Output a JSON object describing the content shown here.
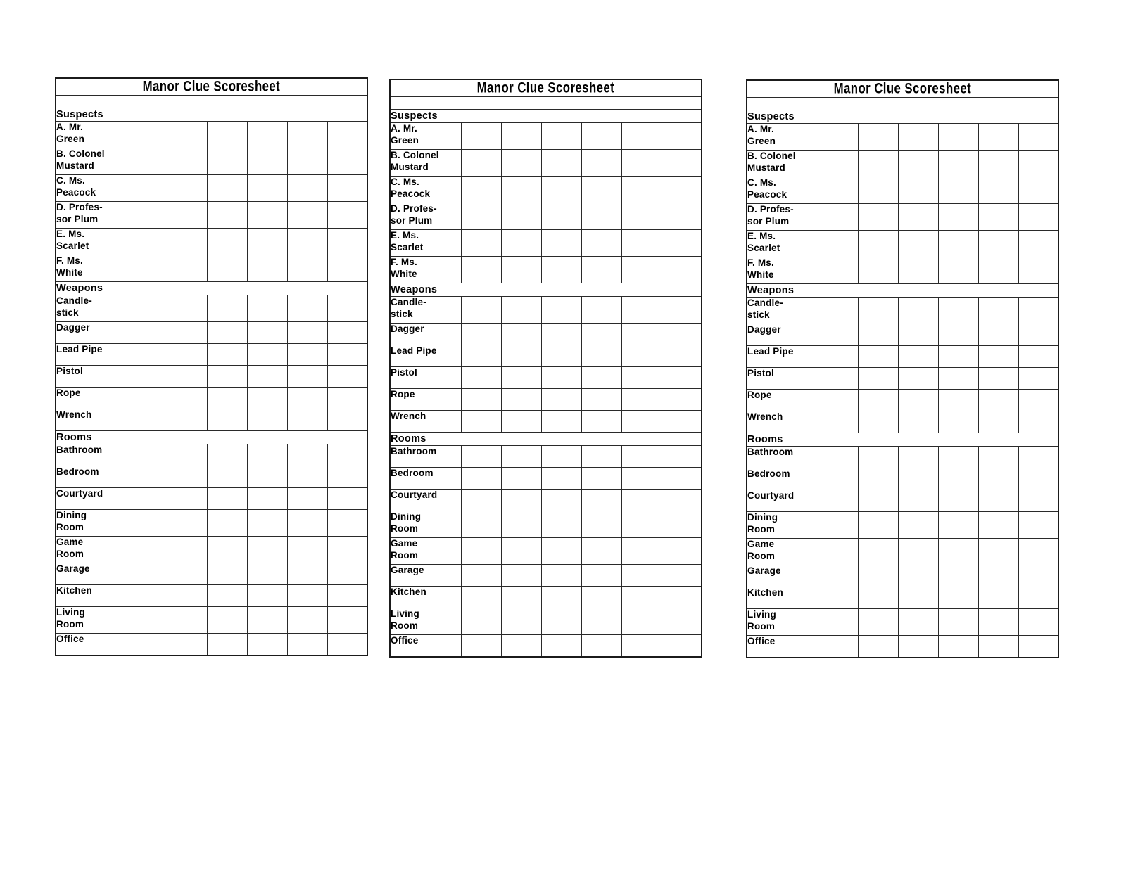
{
  "page": {
    "background": "#ffffff",
    "copies_visible": 3
  },
  "colors": {
    "header_fill": "#b2bec6",
    "border": "#2a2a2a",
    "text": "#000000"
  },
  "scoresheet": {
    "title": "Manor Clue Scoresheet",
    "check_columns": 6,
    "sections": [
      {
        "name": "Suspects",
        "rows": [
          [
            "A. Mr.",
            "Green"
          ],
          [
            "B. Colonel",
            "Mustard"
          ],
          [
            "C. Ms.",
            "Peacock"
          ],
          [
            "D. Profes-",
            "sor Plum"
          ],
          [
            "E. Ms.",
            "Scarlet"
          ],
          [
            "F. Ms.",
            "White"
          ]
        ]
      },
      {
        "name": "Weapons",
        "rows": [
          [
            "Candle-",
            "stick"
          ],
          [
            "Dagger"
          ],
          [
            "Lead Pipe"
          ],
          [
            "Pistol"
          ],
          [
            "Rope"
          ],
          [
            "Wrench"
          ]
        ]
      },
      {
        "name": "Rooms",
        "rows": [
          [
            "Bathroom"
          ],
          [
            "Bedroom"
          ],
          [
            "Courtyard"
          ],
          [
            "Dining",
            "Room"
          ],
          [
            "Game",
            "Room"
          ],
          [
            "Garage"
          ],
          [
            "Kitchen"
          ],
          [
            "Living",
            "Room"
          ],
          [
            "Office"
          ]
        ]
      }
    ]
  }
}
